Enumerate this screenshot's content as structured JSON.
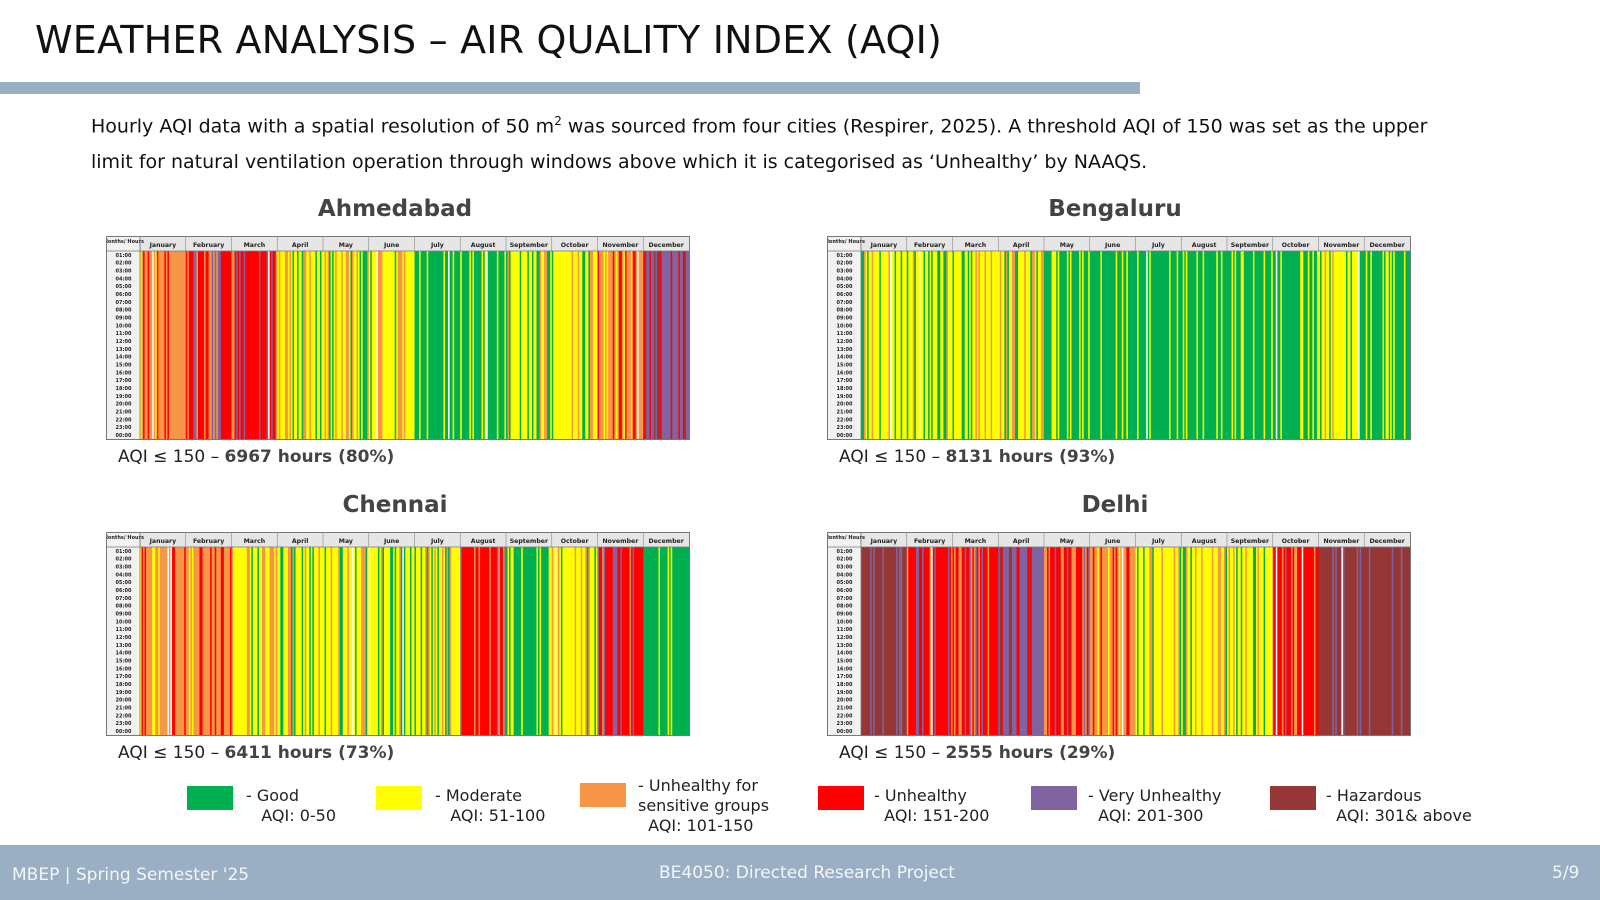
{
  "header": {
    "title": "WEATHER ANALYSIS – AIR QUALITY INDEX (AQI)",
    "intro_line1_a": "Hourly AQI data with a spatial resolution of 50 m",
    "intro_sup": "2",
    "intro_line1_b": " was sourced from four cities (Respirer, 2025). A threshold AQI of 150 was set as the upper",
    "intro_line2": "limit for natural ventilation operation through windows above which it is categorised as ‘Unhealthy’ by NAAQS."
  },
  "colors": {
    "accent_bar": "#9aafc4",
    "footer_bg": "#9aafc4",
    "good": "#00b050",
    "moderate": "#ffff00",
    "usg": "#f79646",
    "unhealthy": "#ff0000",
    "very_unhealthy": "#8064a2",
    "hazardous": "#953735"
  },
  "chart_data": [
    {
      "type": "heatmap",
      "title": "Ahmedabad",
      "corner_label": "Months/ Hours",
      "months": [
        "January",
        "February",
        "March",
        "April",
        "May",
        "June",
        "July",
        "August",
        "September",
        "October",
        "November",
        "December"
      ],
      "hours": [
        "01:00",
        "02:00",
        "03:00",
        "04:00",
        "05:00",
        "06:00",
        "07:00",
        "08:00",
        "09:00",
        "10:00",
        "11:00",
        "12:00",
        "13:00",
        "14:00",
        "15:00",
        "16:00",
        "17:00",
        "18:00",
        "19:00",
        "20:00",
        "21:00",
        "22:00",
        "23:00",
        "00:00"
      ],
      "dominant_category_by_month": [
        "usg",
        "unhealthy",
        "unhealthy",
        "moderate",
        "moderate",
        "moderate",
        "good",
        "good",
        "moderate",
        "moderate",
        "usg",
        "very_unhealthy"
      ],
      "stat_prefix": "AQI ≤ 150 – ",
      "stat_value": "6967 hours (80%)",
      "hours_within_threshold": 6967,
      "percent_within_threshold": 80
    },
    {
      "type": "heatmap",
      "title": "Bengaluru",
      "corner_label": "Months/ Hours",
      "months": [
        "January",
        "February",
        "March",
        "April",
        "May",
        "June",
        "July",
        "August",
        "September",
        "October",
        "November",
        "December"
      ],
      "hours": [
        "01:00",
        "02:00",
        "03:00",
        "04:00",
        "05:00",
        "06:00",
        "07:00",
        "08:00",
        "09:00",
        "10:00",
        "11:00",
        "12:00",
        "13:00",
        "14:00",
        "15:00",
        "16:00",
        "17:00",
        "18:00",
        "19:00",
        "20:00",
        "21:00",
        "22:00",
        "23:00",
        "00:00"
      ],
      "dominant_category_by_month": [
        "moderate",
        "moderate",
        "moderate",
        "moderate",
        "good",
        "good",
        "good",
        "good",
        "good",
        "good",
        "moderate",
        "good"
      ],
      "stat_prefix": "AQI ≤ 150 – ",
      "stat_value": "8131 hours (93%)",
      "hours_within_threshold": 8131,
      "percent_within_threshold": 93
    },
    {
      "type": "heatmap",
      "title": "Chennai",
      "corner_label": "Months/ Hours",
      "months": [
        "January",
        "February",
        "March",
        "April",
        "May",
        "June",
        "July",
        "August",
        "September",
        "October",
        "November",
        "December"
      ],
      "hours": [
        "01:00",
        "02:00",
        "03:00",
        "04:00",
        "05:00",
        "06:00",
        "07:00",
        "08:00",
        "09:00",
        "10:00",
        "11:00",
        "12:00",
        "13:00",
        "14:00",
        "15:00",
        "16:00",
        "17:00",
        "18:00",
        "19:00",
        "20:00",
        "21:00",
        "22:00",
        "23:00",
        "00:00"
      ],
      "dominant_category_by_month": [
        "usg",
        "usg",
        "moderate",
        "moderate",
        "moderate",
        "moderate",
        "moderate",
        "unhealthy",
        "good",
        "moderate",
        "unhealthy",
        "good"
      ],
      "stat_prefix": "AQI ≤ 150 – ",
      "stat_value": "6411 hours (73%)",
      "hours_within_threshold": 6411,
      "percent_within_threshold": 73
    },
    {
      "type": "heatmap",
      "title": "Delhi",
      "corner_label": "Months/ Hours",
      "months": [
        "January",
        "February",
        "March",
        "April",
        "May",
        "June",
        "July",
        "August",
        "September",
        "October",
        "November",
        "December"
      ],
      "hours": [
        "01:00",
        "02:00",
        "03:00",
        "04:00",
        "05:00",
        "06:00",
        "07:00",
        "08:00",
        "09:00",
        "10:00",
        "11:00",
        "12:00",
        "13:00",
        "14:00",
        "15:00",
        "16:00",
        "17:00",
        "18:00",
        "19:00",
        "20:00",
        "21:00",
        "22:00",
        "23:00",
        "00:00"
      ],
      "dominant_category_by_month": [
        "hazardous",
        "unhealthy",
        "unhealthy",
        "very_unhealthy",
        "unhealthy",
        "usg",
        "moderate",
        "moderate",
        "moderate",
        "unhealthy",
        "hazardous",
        "hazardous"
      ],
      "stat_prefix": "AQI ≤ 150 – ",
      "stat_value": "2555 hours (29%)",
      "hours_within_threshold": 2555,
      "percent_within_threshold": 29
    }
  ],
  "legend": [
    {
      "key": "good",
      "line1": "- Good",
      "line2": "AQI: 0-50",
      "line3": ""
    },
    {
      "key": "moderate",
      "line1": "- Moderate",
      "line2": "AQI: 51-100",
      "line3": ""
    },
    {
      "key": "usg",
      "line1": "- Unhealthy for",
      "line2": "sensitive groups",
      "line3": "AQI: 101-150"
    },
    {
      "key": "unhealthy",
      "line1": "- Unhealthy",
      "line2": "AQI: 151-200",
      "line3": ""
    },
    {
      "key": "very_unhealthy",
      "line1": "- Very Unhealthy",
      "line2": "AQI: 201-300",
      "line3": ""
    },
    {
      "key": "hazardous",
      "line1": "- Hazardous",
      "line2": "AQI: 301& above",
      "line3": ""
    }
  ],
  "footer": {
    "left": "MBEP | Spring Semester '25",
    "center": "BE4050: Directed Research Project",
    "page": "5/9"
  }
}
